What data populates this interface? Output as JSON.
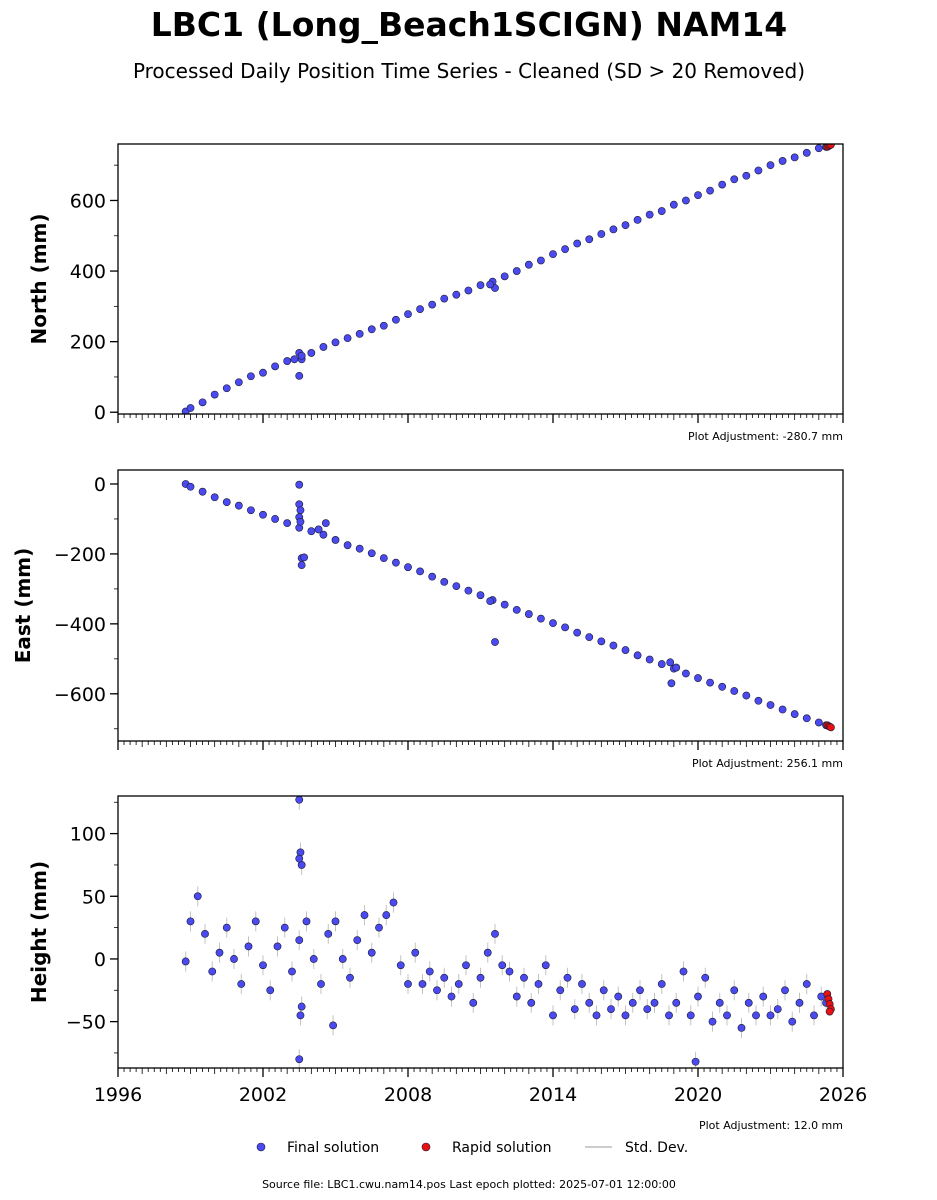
{
  "header": {
    "title": "LBC1 (Long_Beach1SCIGN) NAM14",
    "subtitle": "Processed Daily Position Time Series - Cleaned (SD > 20 Removed)"
  },
  "legend": {
    "final_label": "Final solution",
    "rapid_label": "Rapid solution",
    "std_label": "Std. Dev."
  },
  "footer": {
    "source": "Source file: LBC1.cwu.nam14.pos  Last epoch plotted: 2025-07-01 12:00:00"
  },
  "colors": {
    "final": "#4a4af0",
    "rapid": "#e81010",
    "edge": "#1a1a33",
    "std": "#aaaaaa"
  },
  "chart_data": [
    {
      "type": "scatter",
      "ylabel": "North (mm)",
      "adjustment": "Plot Adjustment: -280.7 mm",
      "xlim": [
        1996,
        2026
      ],
      "ylim": [
        -5,
        760
      ],
      "yticks": [
        0,
        200,
        400,
        600
      ],
      "yticklabels": [
        "0",
        "200",
        "400",
        "600"
      ],
      "series": [
        {
          "role": "final",
          "name": "Final solution",
          "x": [
            1998.8,
            1999.0,
            1999.5,
            2000.0,
            2000.5,
            2001.0,
            2001.5,
            2002.0,
            2002.5,
            2003.0,
            2003.3,
            2003.6,
            2004.0,
            2004.5,
            2005.0,
            2005.5,
            2006.0,
            2006.5,
            2007.0,
            2007.5,
            2008.0,
            2008.5,
            2009.0,
            2009.5,
            2010.0,
            2010.5,
            2011.0,
            2011.5,
            2012.0,
            2012.5,
            2013.0,
            2013.5,
            2014.0,
            2014.5,
            2015.0,
            2015.5,
            2016.0,
            2016.5,
            2017.0,
            2017.5,
            2018.0,
            2018.5,
            2019.0,
            2019.5,
            2020.0,
            2020.5,
            2021.0,
            2021.5,
            2022.0,
            2022.5,
            2023.0,
            2023.5,
            2024.0,
            2024.5,
            2025.0,
            2025.3,
            2003.5,
            2003.5,
            2003.6,
            2011.6,
            2011.4
          ],
          "y": [
            2,
            12,
            28,
            50,
            68,
            85,
            102,
            112,
            130,
            145,
            150,
            150,
            168,
            185,
            198,
            210,
            222,
            235,
            245,
            262,
            278,
            292,
            305,
            322,
            333,
            345,
            360,
            370,
            385,
            400,
            418,
            430,
            448,
            462,
            478,
            490,
            505,
            518,
            530,
            545,
            560,
            570,
            588,
            600,
            615,
            628,
            645,
            660,
            670,
            685,
            700,
            712,
            722,
            735,
            748,
            752,
            103,
            168,
            160,
            352,
            362
          ]
        },
        {
          "role": "rapid",
          "name": "Rapid solution",
          "x": [
            2025.35,
            2025.4,
            2025.45,
            2025.5
          ],
          "y": [
            752,
            754,
            756,
            758
          ]
        }
      ]
    },
    {
      "type": "scatter",
      "ylabel": "East (mm)",
      "adjustment": "Plot Adjustment: 256.1 mm",
      "xlim": [
        1996,
        2026
      ],
      "ylim": [
        -735,
        40
      ],
      "yticks": [
        0,
        -200,
        -400,
        -600
      ],
      "yticklabels": [
        "0",
        "−200",
        "−400",
        "−600"
      ],
      "series": [
        {
          "role": "final",
          "name": "Final solution",
          "x": [
            1998.8,
            1999.0,
            1999.5,
            2000.0,
            2000.5,
            2001.0,
            2001.5,
            2002.0,
            2002.5,
            2003.0,
            2003.5,
            2004.0,
            2004.5,
            2005.0,
            2005.5,
            2006.0,
            2006.5,
            2007.0,
            2007.5,
            2008.0,
            2008.5,
            2009.0,
            2009.5,
            2010.0,
            2010.5,
            2011.0,
            2011.5,
            2012.0,
            2012.5,
            2013.0,
            2013.5,
            2014.0,
            2014.5,
            2015.0,
            2015.5,
            2016.0,
            2016.5,
            2017.0,
            2017.5,
            2018.0,
            2018.5,
            2019.0,
            2019.5,
            2020.0,
            2020.5,
            2021.0,
            2021.5,
            2022.0,
            2022.5,
            2023.0,
            2023.5,
            2024.0,
            2024.5,
            2025.0,
            2025.3,
            2003.5,
            2003.5,
            2003.55,
            2003.5,
            2003.55,
            2003.6,
            2003.6,
            2003.7,
            2004.3,
            2004.6,
            2011.6,
            2011.4,
            2018.9,
            2019.1,
            2018.85
          ],
          "y": [
            0,
            -8,
            -22,
            -38,
            -52,
            -62,
            -75,
            -88,
            -100,
            -112,
            -125,
            -135,
            -145,
            -160,
            -175,
            -185,
            -198,
            -212,
            -225,
            -238,
            -250,
            -265,
            -280,
            -292,
            -305,
            -318,
            -332,
            -345,
            -360,
            -372,
            -385,
            -398,
            -410,
            -425,
            -438,
            -450,
            -462,
            -475,
            -490,
            -502,
            -515,
            -528,
            -542,
            -555,
            -568,
            -580,
            -592,
            -605,
            -620,
            -632,
            -645,
            -658,
            -670,
            -682,
            -690,
            -2,
            -58,
            -75,
            -95,
            -108,
            -212,
            -232,
            -210,
            -130,
            -112,
            -452,
            -335,
            -570,
            -525,
            -510
          ]
        },
        {
          "role": "rapid",
          "name": "Rapid solution",
          "x": [
            2025.35,
            2025.4,
            2025.45,
            2025.5
          ],
          "y": [
            -690,
            -692,
            -694,
            -696
          ]
        }
      ]
    },
    {
      "type": "scatter",
      "ylabel": "Height (mm)",
      "adjustment": "Plot Adjustment: 12.0 mm",
      "xlim": [
        1996,
        2026
      ],
      "ylim": [
        -87,
        130
      ],
      "yticks": [
        100,
        50,
        0,
        -50
      ],
      "yticklabels": [
        "100",
        "50",
        "0",
        "−50"
      ],
      "xticks": [
        1996,
        2002,
        2008,
        2014,
        2020,
        2026
      ],
      "xticklabels": [
        "1996",
        "2002",
        "2008",
        "2014",
        "2020",
        "2026"
      ],
      "series": [
        {
          "role": "final",
          "name": "Final solution",
          "x": [
            1998.8,
            1999.0,
            1999.3,
            1999.6,
            1999.9,
            2000.2,
            2000.5,
            2000.8,
            2001.1,
            2001.4,
            2001.7,
            2002.0,
            2002.3,
            2002.6,
            2002.9,
            2003.2,
            2003.5,
            2003.8,
            2004.1,
            2004.4,
            2004.7,
            2005.0,
            2005.3,
            2005.6,
            2005.9,
            2006.2,
            2006.5,
            2006.8,
            2007.1,
            2007.4,
            2007.7,
            2008.0,
            2008.3,
            2008.6,
            2008.9,
            2009.2,
            2009.5,
            2009.8,
            2010.1,
            2010.4,
            2010.7,
            2011.0,
            2011.3,
            2011.6,
            2011.9,
            2012.2,
            2012.5,
            2012.8,
            2013.1,
            2013.4,
            2013.7,
            2014.0,
            2014.3,
            2014.6,
            2014.9,
            2015.2,
            2015.5,
            2015.8,
            2016.1,
            2016.4,
            2016.7,
            2017.0,
            2017.3,
            2017.6,
            2017.9,
            2018.2,
            2018.5,
            2018.8,
            2019.1,
            2019.4,
            2019.7,
            2020.0,
            2020.3,
            2020.6,
            2020.9,
            2021.2,
            2021.5,
            2021.8,
            2022.1,
            2022.4,
            2022.7,
            2023.0,
            2023.3,
            2023.6,
            2023.9,
            2024.2,
            2024.5,
            2024.8,
            2025.1,
            2025.3,
            2003.5,
            2003.55,
            2003.6,
            2003.5,
            2003.6,
            2003.55,
            2003.5,
            2004.9,
            2019.9
          ],
          "y": [
            -2,
            30,
            50,
            20,
            -10,
            5,
            25,
            0,
            -20,
            10,
            30,
            -5,
            -25,
            10,
            25,
            -10,
            15,
            30,
            0,
            -20,
            20,
            30,
            0,
            -15,
            15,
            35,
            5,
            25,
            35,
            45,
            -5,
            -20,
            5,
            -20,
            -10,
            -25,
            -15,
            -30,
            -20,
            -5,
            -35,
            -15,
            5,
            20,
            -5,
            -10,
            -30,
            -15,
            -35,
            -20,
            -5,
            -45,
            -25,
            -15,
            -40,
            -20,
            -35,
            -45,
            -25,
            -40,
            -30,
            -45,
            -35,
            -25,
            -40,
            -35,
            -20,
            -45,
            -35,
            -10,
            -45,
            -30,
            -15,
            -50,
            -35,
            -45,
            -25,
            -55,
            -35,
            -45,
            -30,
            -45,
            -40,
            -25,
            -50,
            -35,
            -20,
            -45,
            -30,
            -35,
            127,
            85,
            75,
            80,
            -38,
            -45,
            -80,
            -53,
            -82
          ]
        },
        {
          "role": "rapid",
          "name": "Rapid solution",
          "x": [
            2025.35,
            2025.4,
            2025.45,
            2025.5,
            2025.45
          ],
          "y": [
            -28,
            -32,
            -36,
            -40,
            -42
          ]
        }
      ]
    }
  ]
}
